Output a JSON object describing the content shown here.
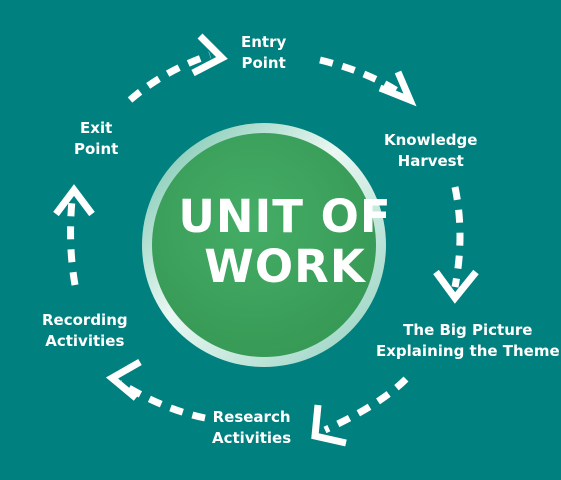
{
  "colors": {
    "background": "#00807f",
    "circle_fill": "#3ea55f",
    "ring_light": "#d9efe8",
    "arrows": "#ffffff",
    "text": "#ffffff"
  },
  "center": {
    "line1": "UNIT OF",
    "line2": "WORK"
  },
  "stages": [
    {
      "id": "entry-point",
      "line1": "Entry",
      "line2": "Point"
    },
    {
      "id": "knowledge-harvest",
      "line1": "Knowledge",
      "line2": "Harvest"
    },
    {
      "id": "big-picture",
      "line1": "The Big Picture",
      "line2": "Explaining the Theme"
    },
    {
      "id": "research-activities",
      "line1": "Research",
      "line2": "Activities"
    },
    {
      "id": "recording-activities",
      "line1": "Recording",
      "line2": "Activities"
    },
    {
      "id": "exit-point",
      "line1": "Exit",
      "line2": "Point"
    }
  ],
  "flow_direction": "clockwise"
}
